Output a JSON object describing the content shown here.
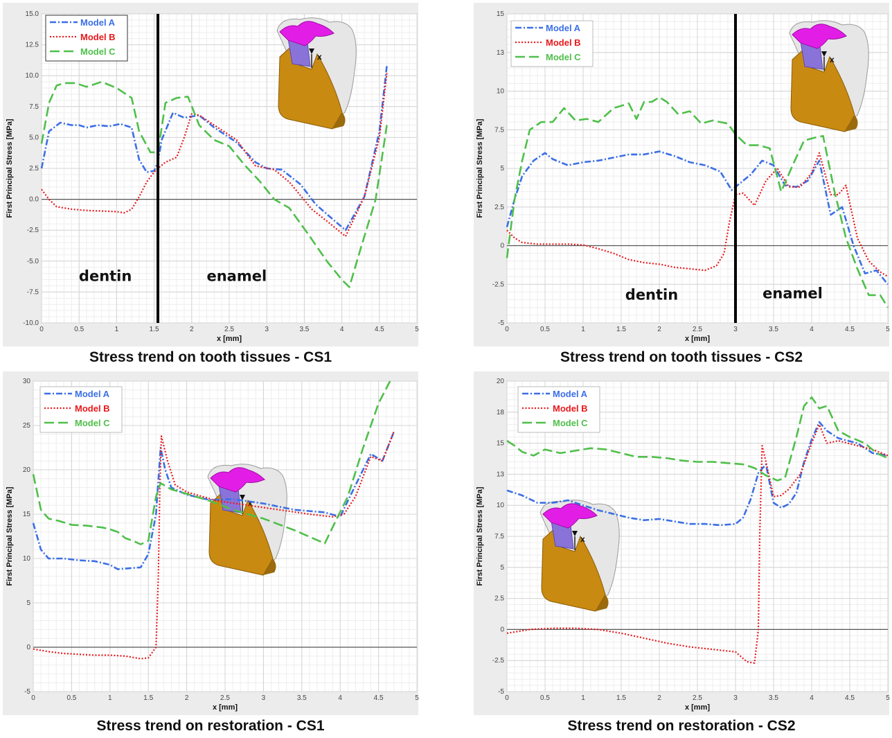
{
  "colors": {
    "model_a": "#3b6fe6",
    "model_b": "#e8181c",
    "model_c": "#4fbf4a",
    "tooth_gold": "#c98a12",
    "tooth_pink": "#e21ee6",
    "tooth_purple": "#8a73d8",
    "tooth_white": "#e6e6e6"
  },
  "chart_data": [
    {
      "type": "line",
      "caption": "Stress trend on tooth tissues -  CS1",
      "xlabel": "x [mm]",
      "ylabel": "First Principal Stress [MPa]",
      "xlim": [
        0,
        5
      ],
      "ylim": [
        -10,
        15
      ],
      "xticks": [
        0,
        0.5,
        1,
        1.5,
        2,
        2.5,
        3,
        3.5,
        4,
        4.5,
        5
      ],
      "xtick_labels": [
        "0",
        "0.5",
        "1",
        "1.5",
        "2",
        "2.5",
        "3",
        "3.5",
        "4",
        "4.5",
        "5"
      ],
      "yticks": [
        -10,
        -7.5,
        -5,
        -2.5,
        0,
        2.5,
        5,
        7.5,
        10,
        12.5,
        15
      ],
      "ytick_labels": [
        "-10.0",
        "-7.5",
        "-5.0",
        "-2.5",
        "0.0",
        "2.5",
        "5.0",
        "7.5",
        "10.0",
        "12.5",
        "15.0"
      ],
      "grid": true,
      "legend": "top-left",
      "boundary_x": 1.55,
      "regions": [
        {
          "text": "dentin",
          "x": 0.85,
          "y": -6.6
        },
        {
          "text": "enamel",
          "x": 2.6,
          "y": -6.6
        }
      ],
      "series": [
        {
          "name": "Model A",
          "x": [
            0,
            0.1,
            0.25,
            0.4,
            0.5,
            0.6,
            0.75,
            0.9,
            1.05,
            1.2,
            1.3,
            1.4,
            1.5,
            1.55,
            1.6,
            1.75,
            1.9,
            2.1,
            2.3,
            2.6,
            2.85,
            3.0,
            3.2,
            3.45,
            3.65,
            3.8,
            4.05,
            4.3,
            4.5,
            4.6
          ],
          "y": [
            2.5,
            5.5,
            6.2,
            6.0,
            6.0,
            5.8,
            6.0,
            5.9,
            6.1,
            5.8,
            3.2,
            2.2,
            2.3,
            3.0,
            4.8,
            7.0,
            6.6,
            6.8,
            5.8,
            4.6,
            3.0,
            2.5,
            2.4,
            1.2,
            -0.4,
            -1.2,
            -2.5,
            0.2,
            5.5,
            10.8
          ]
        },
        {
          "name": "Model B",
          "x": [
            0,
            0.1,
            0.2,
            0.4,
            0.6,
            0.8,
            1.0,
            1.1,
            1.2,
            1.3,
            1.4,
            1.5,
            1.55,
            1.65,
            1.8,
            1.9,
            2.0,
            2.1,
            2.3,
            2.6,
            2.85,
            3.1,
            3.3,
            3.6,
            3.85,
            4.05,
            4.3,
            4.5,
            4.6
          ],
          "y": [
            0.8,
            0.0,
            -0.6,
            -0.8,
            -0.9,
            -0.95,
            -1.0,
            -1.1,
            -0.8,
            0.2,
            1.4,
            2.2,
            2.5,
            3.0,
            3.4,
            5.0,
            6.9,
            6.8,
            6.0,
            4.8,
            2.7,
            2.4,
            1.4,
            -0.8,
            -2.0,
            -3.0,
            0.2,
            5.0,
            10.2
          ]
        },
        {
          "name": "Model C",
          "x": [
            0,
            0.1,
            0.2,
            0.3,
            0.45,
            0.6,
            0.8,
            1.0,
            1.2,
            1.3,
            1.45,
            1.55,
            1.65,
            1.8,
            1.95,
            2.1,
            2.3,
            2.5,
            2.7,
            2.9,
            3.1,
            3.3,
            3.55,
            3.8,
            4.0,
            4.1,
            4.25,
            4.45,
            4.6
          ],
          "y": [
            4.5,
            7.8,
            9.2,
            9.4,
            9.4,
            9.1,
            9.5,
            9.0,
            8.2,
            5.5,
            3.8,
            3.8,
            7.8,
            8.2,
            8.3,
            6.0,
            4.8,
            4.3,
            2.8,
            1.5,
            0.0,
            -0.7,
            -2.8,
            -5.0,
            -6.5,
            -7.1,
            -4.0,
            0.0,
            6.0
          ]
        }
      ]
    },
    {
      "type": "line",
      "caption": "Stress trend on tooth tissues -  CS2",
      "xlabel": "x [mm]",
      "ylabel": "First Principal Stress [MPa]",
      "xlim": [
        0,
        5
      ],
      "ylim": [
        -5,
        15
      ],
      "xticks": [
        0,
        0.5,
        1,
        1.5,
        2,
        2.5,
        3,
        3.5,
        4,
        4.5,
        5
      ],
      "xtick_labels": [
        "0",
        "0.5",
        "1",
        "1.5",
        "2",
        "2.5",
        "3",
        "3.5",
        "4",
        "4.5",
        "5"
      ],
      "yticks": [
        -5,
        -2.5,
        0,
        2.5,
        5,
        7.5,
        10,
        12.5,
        15
      ],
      "ytick_labels": [
        "-5",
        "-2.5",
        "0",
        "2.5",
        "5",
        "7.5",
        "10",
        "13",
        "15"
      ],
      "grid": true,
      "legend": "top-left",
      "boundary_x": 3.0,
      "regions": [
        {
          "text": "dentin",
          "x": 1.9,
          "y": -3.5
        },
        {
          "text": "enamel",
          "x": 3.75,
          "y": -3.4
        }
      ],
      "series": [
        {
          "name": "Model A",
          "x": [
            0,
            0.1,
            0.2,
            0.35,
            0.5,
            0.6,
            0.8,
            1.0,
            1.2,
            1.4,
            1.6,
            1.8,
            2.0,
            2.2,
            2.4,
            2.6,
            2.8,
            2.95,
            3.05,
            3.2,
            3.35,
            3.5,
            3.65,
            3.8,
            3.95,
            4.1,
            4.25,
            4.4,
            4.55,
            4.7,
            4.85,
            5.0
          ],
          "y": [
            1.2,
            3.0,
            4.5,
            5.5,
            6.0,
            5.6,
            5.2,
            5.4,
            5.5,
            5.7,
            5.9,
            5.9,
            6.1,
            5.8,
            5.4,
            5.2,
            4.8,
            3.6,
            4.0,
            4.6,
            5.5,
            5.2,
            3.9,
            3.8,
            4.2,
            5.5,
            2.0,
            2.5,
            0.0,
            -1.8,
            -1.6,
            -2.5
          ]
        },
        {
          "name": "Model B",
          "x": [
            0,
            0.1,
            0.2,
            0.4,
            0.6,
            0.8,
            1.0,
            1.2,
            1.4,
            1.6,
            1.8,
            2.0,
            2.2,
            2.4,
            2.6,
            2.75,
            2.85,
            2.92,
            3.0,
            3.1,
            3.25,
            3.4,
            3.55,
            3.7,
            3.85,
            4.0,
            4.1,
            4.25,
            4.35,
            4.45,
            4.6,
            4.75,
            4.9,
            5.0
          ],
          "y": [
            1.0,
            0.5,
            0.2,
            0.1,
            0.1,
            0.1,
            0.05,
            -0.2,
            -0.5,
            -0.9,
            -1.1,
            -1.2,
            -1.4,
            -1.5,
            -1.6,
            -1.3,
            -0.5,
            1.5,
            3.3,
            3.4,
            2.6,
            4.2,
            5.0,
            3.8,
            3.8,
            4.7,
            6.0,
            3.3,
            3.3,
            3.9,
            0.5,
            -1.0,
            -1.7,
            -2.0
          ]
        },
        {
          "name": "Model C",
          "x": [
            0,
            0.1,
            0.2,
            0.3,
            0.45,
            0.6,
            0.75,
            0.9,
            1.05,
            1.2,
            1.4,
            1.6,
            1.7,
            1.8,
            1.9,
            2.0,
            2.1,
            2.25,
            2.4,
            2.55,
            2.7,
            2.9,
            3.0,
            3.15,
            3.3,
            3.45,
            3.6,
            3.75,
            3.9,
            4.05,
            4.15,
            4.3,
            4.45,
            4.6,
            4.75,
            4.9,
            5.0
          ],
          "y": [
            -0.8,
            3.0,
            5.5,
            7.5,
            8.0,
            8.0,
            8.9,
            8.1,
            8.2,
            8.0,
            8.9,
            9.2,
            8.2,
            9.3,
            9.3,
            9.6,
            9.3,
            8.5,
            8.7,
            7.9,
            8.1,
            7.9,
            7.2,
            6.5,
            6.5,
            6.3,
            3.5,
            5.2,
            6.8,
            7.0,
            7.1,
            3.5,
            0.5,
            -1.5,
            -3.2,
            -3.2,
            -4.0
          ]
        }
      ]
    },
    {
      "type": "line",
      "caption": "Stress trend on restoration -  CS1",
      "xlabel": "x [mm]",
      "ylabel": "First Principal Stress [MPa]",
      "xlim": [
        0,
        5
      ],
      "ylim": [
        -5,
        30
      ],
      "xticks": [
        0,
        0.5,
        1,
        1.5,
        2,
        2.5,
        3,
        3.5,
        4,
        4.5,
        5
      ],
      "xtick_labels": [
        "0",
        "0.5",
        "1",
        "1.5",
        "2",
        "2.5",
        "3",
        "3.5",
        "4",
        "4.5",
        "5"
      ],
      "yticks": [
        -5,
        0,
        5,
        10,
        15,
        20,
        25,
        30
      ],
      "ytick_labels": [
        "-5",
        "0",
        "5",
        "10",
        "15",
        "20",
        "25",
        "30"
      ],
      "grid": true,
      "legend": "top-left",
      "series": [
        {
          "name": "Model A",
          "x": [
            0,
            0.1,
            0.2,
            0.4,
            0.6,
            0.8,
            1.0,
            1.1,
            1.25,
            1.4,
            1.5,
            1.6,
            1.66,
            1.72,
            1.8,
            2.0,
            2.3,
            2.6,
            3.0,
            3.4,
            3.8,
            4.0,
            4.1,
            4.4,
            4.55,
            4.7
          ],
          "y": [
            14,
            11,
            10,
            10,
            9.8,
            9.7,
            9.3,
            8.8,
            8.9,
            9.0,
            10.5,
            15,
            22.5,
            20,
            18,
            17.2,
            16.6,
            16.7,
            16.2,
            15.5,
            15.2,
            14.7,
            16.5,
            21.8,
            21.0,
            24.3
          ]
        },
        {
          "name": "Model B",
          "x": [
            0,
            0.2,
            0.4,
            0.6,
            0.8,
            1.0,
            1.2,
            1.4,
            1.5,
            1.6,
            1.63,
            1.65,
            1.67,
            1.75,
            1.85,
            2.0,
            2.4,
            2.8,
            3.2,
            3.6,
            3.9,
            4.05,
            4.2,
            4.4,
            4.55,
            4.7
          ],
          "y": [
            -0.2,
            -0.5,
            -0.7,
            -0.8,
            -0.9,
            -0.9,
            -1.0,
            -1.3,
            -1.2,
            0.0,
            8.0,
            18,
            23.8,
            21,
            18.3,
            17.5,
            16.5,
            16.0,
            15.5,
            15.0,
            14.7,
            15.0,
            17.0,
            21.5,
            21.0,
            24.3
          ]
        },
        {
          "name": "Model C",
          "x": [
            0,
            0.1,
            0.2,
            0.35,
            0.5,
            0.7,
            0.9,
            1.0,
            1.1,
            1.2,
            1.3,
            1.4,
            1.5,
            1.6,
            1.66,
            1.8,
            2.0,
            2.3,
            2.6,
            3.0,
            3.4,
            3.8,
            3.9,
            4.1,
            4.3,
            4.5,
            4.65
          ],
          "y": [
            19.5,
            15.5,
            14.5,
            14.2,
            13.8,
            13.7,
            13.5,
            13.3,
            13.0,
            12.3,
            12.0,
            11.6,
            12.0,
            17,
            18.5,
            17.8,
            17.3,
            16.5,
            15.5,
            14.5,
            13.2,
            11.7,
            13.5,
            17,
            22.5,
            27.5,
            30
          ]
        }
      ]
    },
    {
      "type": "line",
      "caption": "Stress trend on restoration -  CS2",
      "xlabel": "x [mm]",
      "ylabel": "First Principal Stress [MPa]",
      "xlim": [
        0,
        5
      ],
      "ylim": [
        -5,
        20
      ],
      "xticks": [
        0,
        0.5,
        1,
        1.5,
        2,
        2.5,
        3,
        3.5,
        4,
        4.5,
        5
      ],
      "xtick_labels": [
        "0",
        "0.5",
        "1",
        "1.5",
        "2",
        "2.5",
        "3",
        "3.5",
        "4",
        "4.5",
        "5"
      ],
      "yticks": [
        -5,
        -2.5,
        0,
        2.5,
        5,
        7.5,
        10,
        12.5,
        15,
        17.5,
        20
      ],
      "ytick_labels": [
        "-5",
        "-2.5",
        "0",
        "2.5",
        "5",
        "7.5",
        "10",
        "13",
        "15",
        "18",
        "20"
      ],
      "grid": true,
      "legend": "top-left",
      "series": [
        {
          "name": "Model A",
          "x": [
            0,
            0.2,
            0.4,
            0.6,
            0.8,
            1.0,
            1.2,
            1.4,
            1.6,
            1.8,
            2.0,
            2.2,
            2.4,
            2.6,
            2.8,
            3.0,
            3.1,
            3.2,
            3.3,
            3.4,
            3.5,
            3.6,
            3.7,
            3.8,
            3.9,
            4.0,
            4.1,
            4.2,
            4.35,
            4.6,
            4.8,
            5.0
          ],
          "y": [
            11.2,
            10.8,
            10.2,
            10.2,
            10.4,
            10.0,
            9.6,
            9.3,
            9.0,
            8.8,
            8.9,
            8.7,
            8.5,
            8.5,
            8.4,
            8.5,
            9.0,
            10.5,
            12.6,
            13.3,
            10.2,
            9.8,
            10.1,
            11.0,
            13.5,
            15.3,
            16.7,
            16.0,
            15.4,
            15.0,
            14.2,
            14.0
          ]
        },
        {
          "name": "Model B",
          "x": [
            0,
            0.3,
            0.6,
            0.9,
            1.2,
            1.5,
            1.8,
            2.1,
            2.4,
            2.7,
            3.0,
            3.15,
            3.25,
            3.3,
            3.32,
            3.35,
            3.4,
            3.5,
            3.6,
            3.7,
            3.85,
            4.0,
            4.1,
            4.2,
            4.35,
            4.6,
            4.8,
            5.0
          ],
          "y": [
            -0.3,
            0.0,
            0.1,
            0.1,
            0.0,
            -0.3,
            -0.7,
            -1.1,
            -1.4,
            -1.6,
            -1.8,
            -2.6,
            -2.7,
            0,
            8,
            14.8,
            13.5,
            10.7,
            10.8,
            11.3,
            12.5,
            15.0,
            16.5,
            15.0,
            15.2,
            14.8,
            14.5,
            14.0
          ]
        },
        {
          "name": "Model C",
          "x": [
            0,
            0.1,
            0.2,
            0.35,
            0.5,
            0.7,
            0.9,
            1.1,
            1.3,
            1.5,
            1.7,
            1.9,
            2.1,
            2.3,
            2.5,
            2.7,
            2.9,
            3.1,
            3.25,
            3.4,
            3.55,
            3.65,
            3.8,
            3.9,
            4.0,
            4.1,
            4.2,
            4.35,
            4.5,
            4.7,
            4.85,
            5.0
          ],
          "y": [
            15.2,
            14.8,
            14.3,
            14.0,
            14.5,
            14.2,
            14.4,
            14.6,
            14.5,
            14.2,
            13.9,
            13.9,
            13.8,
            13.6,
            13.5,
            13.5,
            13.4,
            13.3,
            13.0,
            12.4,
            12.0,
            12.2,
            15.5,
            18.0,
            18.7,
            17.8,
            18.0,
            16.0,
            15.5,
            15.0,
            14.2,
            13.8
          ]
        }
      ]
    }
  ]
}
